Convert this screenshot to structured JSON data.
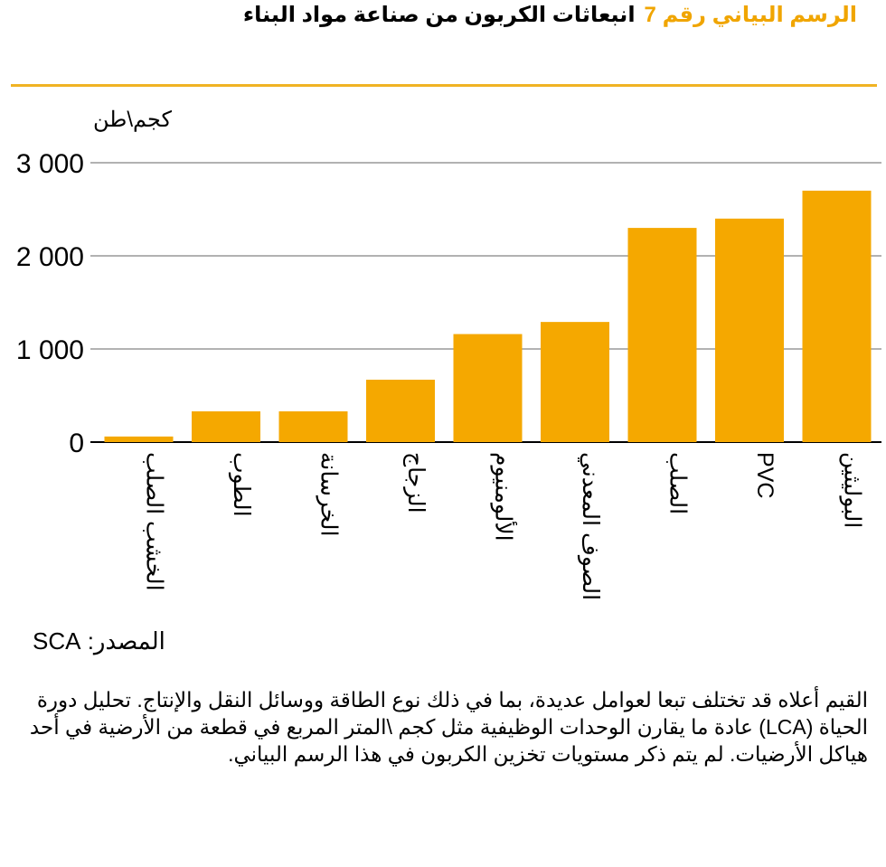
{
  "header": {
    "figure_label": "الرسم البياني رقم 7",
    "figure_title": "انبعاثات الكربون من صناعة مواد البناء"
  },
  "source": "المصدر: SCA",
  "note": "القيم أعلاه قد تختلف تبعا لعوامل عديدة، بما في ذلك نوع الطاقة ووسائل النقل والإنتاج. تحليل دورة الحياة (LCA) عادة ما يقارن الوحدات الوظيفية مثل كجم \\المتر المربع في قطعة من الأرضية في أحد هياكل الأرضيات. لم يتم ذكر مستويات تخزين الكربون في هذا الرسم البياني.",
  "colors": {
    "bar": "#f5a800",
    "accent_rule": "#f0b323",
    "label": "#f0a500",
    "grid": "#999999"
  },
  "chart_data": {
    "type": "bar",
    "ylabel": "كجم\\طن",
    "ylim": [
      0,
      3000
    ],
    "yticks": [
      0,
      1000,
      2000,
      3000
    ],
    "ytick_labels": [
      "0",
      "1 000",
      "2 000",
      "3 000"
    ],
    "categories": [
      "الخشب الصلب",
      "الطوب",
      "الخرسانة",
      "الزجاج",
      "الألومنيوم",
      "الصوف المعدني",
      "الصلب",
      "PVC",
      "البوليثين"
    ],
    "values": [
      60,
      330,
      330,
      670,
      1160,
      1290,
      2300,
      2400,
      2700
    ],
    "grid": true,
    "legend": false
  }
}
